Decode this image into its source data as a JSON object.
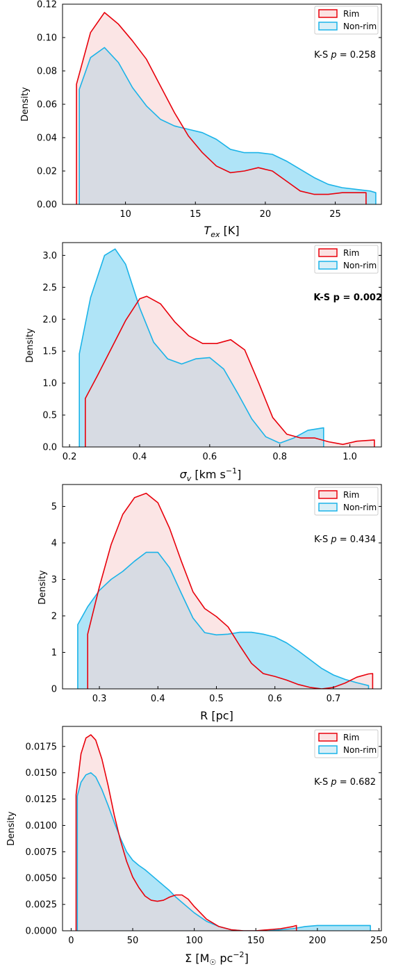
{
  "colors": {
    "rim": "#e8000b",
    "nonrim": "#1ab3e8",
    "rim_fill": "#fbe2e2",
    "nonrim_fill": "#d9eff7",
    "overlap": "#d7dbe3"
  },
  "chart_data": [
    {
      "type": "area",
      "xlabel": "T_ex [K]",
      "ylabel": "Density",
      "xlim": [
        5.5,
        28.3
      ],
      "ylim": [
        0,
        0.12
      ],
      "xticks": [
        "10",
        "15",
        "20",
        "25"
      ],
      "yticks": [
        "0.00",
        "0.02",
        "0.04",
        "0.06",
        "0.08",
        "0.10",
        "0.12"
      ],
      "legend": [
        "Rim",
        "Non-rim"
      ],
      "legend_position": "top-right",
      "annotation": "K-S p = 0.258",
      "annotation_bold": false,
      "series": [
        {
          "name": "Rim",
          "x": [
            6.5,
            7.5,
            8.5,
            9.5,
            10.5,
            11.5,
            12.5,
            13.5,
            14.5,
            15.5,
            16.5,
            17.5,
            18.5,
            19.5,
            20.5,
            21.5,
            22.5,
            23.5,
            24.5,
            25.5,
            26.5,
            27.2
          ],
          "y": [
            0.072,
            0.103,
            0.115,
            0.108,
            0.098,
            0.087,
            0.071,
            0.055,
            0.041,
            0.031,
            0.023,
            0.019,
            0.02,
            0.022,
            0.02,
            0.014,
            0.008,
            0.006,
            0.006,
            0.007,
            0.007,
            0.007
          ]
        },
        {
          "name": "Non-rim",
          "x": [
            6.7,
            7.5,
            8.5,
            9.5,
            10.5,
            11.5,
            12.5,
            13.5,
            14.5,
            15.5,
            16.5,
            17.5,
            18.5,
            19.5,
            20.5,
            21.5,
            22.5,
            23.5,
            24.5,
            25.5,
            26.5,
            27.5,
            27.9
          ],
          "y": [
            0.069,
            0.088,
            0.094,
            0.085,
            0.07,
            0.059,
            0.051,
            0.047,
            0.045,
            0.043,
            0.039,
            0.033,
            0.031,
            0.031,
            0.03,
            0.026,
            0.021,
            0.016,
            0.012,
            0.01,
            0.009,
            0.008,
            0.007
          ]
        }
      ]
    },
    {
      "type": "area",
      "xlabel": "σ_v [km s^-1]",
      "ylabel": "Density",
      "xlim": [
        0.18,
        1.09
      ],
      "ylim": [
        0,
        3.2
      ],
      "xticks": [
        "0.2",
        "0.4",
        "0.6",
        "0.8",
        "1.0"
      ],
      "yticks": [
        "0.0",
        "0.5",
        "1.0",
        "1.5",
        "2.0",
        "2.5",
        "3.0"
      ],
      "legend": [
        "Rim",
        "Non-rim"
      ],
      "legend_position": "top-right",
      "annotation": "K-S p = 0.002",
      "annotation_bold": true,
      "series": [
        {
          "name": "Rim",
          "x": [
            0.245,
            0.28,
            0.32,
            0.36,
            0.4,
            0.42,
            0.46,
            0.5,
            0.54,
            0.58,
            0.62,
            0.66,
            0.7,
            0.74,
            0.78,
            0.82,
            0.86,
            0.9,
            0.94,
            0.98,
            1.02,
            1.07
          ],
          "y": [
            0.76,
            1.12,
            1.55,
            1.98,
            2.32,
            2.36,
            2.24,
            1.96,
            1.74,
            1.62,
            1.62,
            1.68,
            1.52,
            1.0,
            0.46,
            0.2,
            0.14,
            0.14,
            0.08,
            0.04,
            0.09,
            0.11
          ]
        },
        {
          "name": "Non-rim",
          "x": [
            0.228,
            0.26,
            0.3,
            0.33,
            0.36,
            0.4,
            0.44,
            0.48,
            0.52,
            0.56,
            0.6,
            0.64,
            0.68,
            0.72,
            0.76,
            0.8,
            0.84,
            0.88,
            0.925
          ],
          "y": [
            1.46,
            2.34,
            3.0,
            3.1,
            2.86,
            2.18,
            1.64,
            1.38,
            1.3,
            1.38,
            1.4,
            1.22,
            0.84,
            0.44,
            0.16,
            0.06,
            0.14,
            0.26,
            0.3
          ]
        }
      ]
    },
    {
      "type": "area",
      "xlabel": "R [pc]",
      "ylabel": "Density",
      "xlim": [
        0.237,
        0.782
      ],
      "ylim": [
        0,
        5.6
      ],
      "xticks": [
        "0.3",
        "0.4",
        "0.5",
        "0.6",
        "0.7"
      ],
      "yticks": [
        "0",
        "1",
        "2",
        "3",
        "4",
        "5"
      ],
      "legend": [
        "Rim",
        "Non-rim"
      ],
      "legend_position": "top-right",
      "annotation": "K-S p = 0.434",
      "annotation_bold": false,
      "series": [
        {
          "name": "Rim",
          "x": [
            0.28,
            0.3,
            0.32,
            0.34,
            0.36,
            0.38,
            0.4,
            0.42,
            0.44,
            0.46,
            0.48,
            0.5,
            0.52,
            0.54,
            0.56,
            0.58,
            0.6,
            0.62,
            0.64,
            0.66,
            0.68,
            0.7,
            0.72,
            0.74,
            0.76,
            0.767
          ],
          "y": [
            1.5,
            2.8,
            3.95,
            4.78,
            5.24,
            5.36,
            5.1,
            4.4,
            3.5,
            2.66,
            2.2,
            1.98,
            1.7,
            1.18,
            0.7,
            0.42,
            0.34,
            0.24,
            0.12,
            0.04,
            0.0,
            0.04,
            0.16,
            0.32,
            0.41,
            0.42
          ]
        },
        {
          "name": "Non-rim",
          "x": [
            0.263,
            0.28,
            0.3,
            0.32,
            0.34,
            0.36,
            0.38,
            0.4,
            0.42,
            0.44,
            0.46,
            0.48,
            0.5,
            0.52,
            0.54,
            0.56,
            0.58,
            0.6,
            0.62,
            0.64,
            0.66,
            0.68,
            0.7,
            0.72,
            0.74,
            0.76
          ],
          "y": [
            1.76,
            2.25,
            2.7,
            3.0,
            3.22,
            3.5,
            3.74,
            3.74,
            3.32,
            2.62,
            1.94,
            1.54,
            1.48,
            1.5,
            1.55,
            1.55,
            1.5,
            1.42,
            1.26,
            1.04,
            0.8,
            0.56,
            0.38,
            0.26,
            0.17,
            0.09
          ]
        }
      ]
    },
    {
      "type": "area",
      "xlabel": "Σ [M⊙ pc^-2]",
      "ylabel": "Density",
      "xlim": [
        -7,
        252
      ],
      "ylim": [
        0,
        0.0194
      ],
      "xticks": [
        "0",
        "50",
        "100",
        "150",
        "200",
        "250"
      ],
      "yticks": [
        "0.0000",
        "0.0025",
        "0.0050",
        "0.0075",
        "0.0100",
        "0.0125",
        "0.0150",
        "0.0175"
      ],
      "legend": [
        "Rim",
        "Non-rim"
      ],
      "legend_position": "top-right",
      "annotation": "K-S p = 0.682",
      "annotation_bold": false,
      "series": [
        {
          "name": "Rim",
          "x": [
            4,
            8,
            12,
            16,
            20,
            25,
            30,
            35,
            40,
            45,
            50,
            55,
            60,
            65,
            70,
            75,
            80,
            85,
            90,
            95,
            100,
            110,
            120,
            130,
            140,
            150,
            160,
            170,
            180,
            183
          ],
          "y": [
            0.0129,
            0.0168,
            0.0183,
            0.0186,
            0.0181,
            0.0163,
            0.0138,
            0.011,
            0.0086,
            0.0066,
            0.0051,
            0.0041,
            0.0033,
            0.0029,
            0.0028,
            0.0029,
            0.0032,
            0.0034,
            0.0034,
            0.003,
            0.0023,
            0.0011,
            0.0004,
            0.0001,
            0.0,
            0.0,
            0.0001,
            0.0002,
            0.0004,
            0.0005
          ]
        },
        {
          "name": "Non-rim",
          "x": [
            5,
            8,
            12,
            16,
            20,
            25,
            30,
            35,
            40,
            45,
            50,
            55,
            60,
            65,
            70,
            75,
            80,
            85,
            90,
            95,
            100,
            110,
            120,
            130,
            140,
            150,
            160,
            170,
            180,
            190,
            200,
            210,
            220,
            230,
            240,
            243
          ],
          "y": [
            0.0128,
            0.0141,
            0.0148,
            0.015,
            0.0146,
            0.0134,
            0.0119,
            0.0103,
            0.0088,
            0.0075,
            0.0067,
            0.0062,
            0.0058,
            0.0053,
            0.0048,
            0.0043,
            0.0038,
            0.0032,
            0.0027,
            0.0022,
            0.0017,
            0.0009,
            0.0004,
            0.0001,
            0.0,
            0.0,
            0.0,
            0.0001,
            0.0002,
            0.0004,
            0.0005,
            0.0005,
            0.0005,
            0.0005,
            0.0005,
            0.0005
          ]
        }
      ]
    }
  ]
}
